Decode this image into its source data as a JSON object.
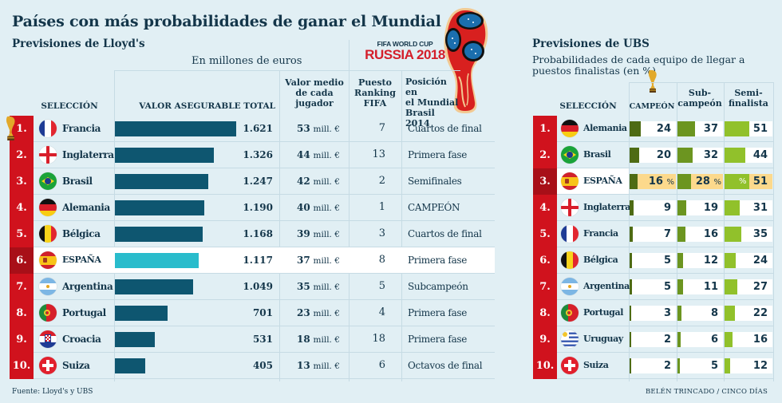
{
  "title": "Países con más probabilidades de ganar el Mundial",
  "lloyds": {
    "subtitle": "Previsiones de Lloyd's",
    "unit_note": "En millones de euros",
    "headers": {
      "seleccion": "SELECCIÓN",
      "valor_total": "VALOR ASEGURABLE TOTAL",
      "valor_medio": [
        "Valor medio",
        "de cada",
        "jugador"
      ],
      "ranking": [
        "Puesto",
        "Ranking",
        "FIFA"
      ],
      "posicion": [
        "Posición en",
        "el Mundial",
        "Brasil 2014"
      ]
    },
    "mill_suffix": "mill. €",
    "rows": [
      {
        "rank": "1.",
        "country": "Francia",
        "flag": "france",
        "value": "1.621",
        "value_num": 1621,
        "avg": "53",
        "fifa": "7",
        "pos2014": "Cuartos de final",
        "highlight": false
      },
      {
        "rank": "2.",
        "country": "Inglaterra",
        "flag": "england",
        "value": "1.326",
        "value_num": 1326,
        "avg": "44",
        "fifa": "13",
        "pos2014": "Primera fase",
        "highlight": false
      },
      {
        "rank": "3.",
        "country": "Brasil",
        "flag": "brazil",
        "value": "1.247",
        "value_num": 1247,
        "avg": "42",
        "fifa": "2",
        "pos2014": "Semifinales",
        "highlight": false
      },
      {
        "rank": "4.",
        "country": "Alemania",
        "flag": "germany",
        "value": "1.190",
        "value_num": 1190,
        "avg": "40",
        "fifa": "1",
        "pos2014": "CAMPEÓN",
        "highlight": false
      },
      {
        "rank": "5.",
        "country": "Bélgica",
        "flag": "belgium",
        "value": "1.168",
        "value_num": 1168,
        "avg": "39",
        "fifa": "3",
        "pos2014": "Cuartos de final",
        "highlight": false
      },
      {
        "rank": "6.",
        "country": "ESPAÑA",
        "flag": "spain",
        "value": "1.117",
        "value_num": 1117,
        "avg": "37",
        "fifa": "8",
        "pos2014": "Primera fase",
        "highlight": true
      },
      {
        "rank": "7.",
        "country": "Argentina",
        "flag": "argentina",
        "value": "1.049",
        "value_num": 1049,
        "avg": "35",
        "fifa": "5",
        "pos2014": "Subcampeón",
        "highlight": false
      },
      {
        "rank": "8.",
        "country": "Portugal",
        "flag": "portugal",
        "value": "701",
        "value_num": 701,
        "avg": "23",
        "fifa": "4",
        "pos2014": "Primera fase",
        "highlight": false
      },
      {
        "rank": "9.",
        "country": "Croacia",
        "flag": "croatia",
        "value": "531",
        "value_num": 531,
        "avg": "18",
        "fifa": "18",
        "pos2014": "Primera fase",
        "highlight": false
      },
      {
        "rank": "10.",
        "country": "Suiza",
        "flag": "switzerland",
        "value": "405",
        "value_num": 405,
        "avg": "13",
        "fifa": "6",
        "pos2014": "Octavos de final",
        "highlight": false
      }
    ]
  },
  "logo": {
    "small": "FIFA WORLD CUP",
    "big": "RUSSIA 2018"
  },
  "ubs": {
    "subtitle": "Previsiones de UBS",
    "description": "Probabilidades de cada equipo de llegar a puestos finalistas (en %)",
    "headers": {
      "seleccion": "SELECCIÓN",
      "campeon": "CAMPEÓN",
      "subcampeon": [
        "Sub-",
        "campeón"
      ],
      "semifinalista": [
        "Semi-",
        "finalista"
      ]
    },
    "pct_symbol": "%",
    "rows": [
      {
        "rank": "1.",
        "country": "Alemania",
        "flag": "germany",
        "champ": 24,
        "runner": 37,
        "semi": 51,
        "highlight": false
      },
      {
        "rank": "2.",
        "country": "Brasil",
        "flag": "brazil",
        "champ": 20,
        "runner": 32,
        "semi": 44,
        "highlight": false
      },
      {
        "rank": "3.",
        "country": "ESPAÑA",
        "flag": "spain",
        "champ": 16,
        "runner": 28,
        "semi": 51,
        "highlight": true
      },
      {
        "rank": "4.",
        "country": "Inglaterra",
        "flag": "england",
        "champ": 9,
        "runner": 19,
        "semi": 31,
        "highlight": false
      },
      {
        "rank": "5.",
        "country": "Francia",
        "flag": "france",
        "champ": 7,
        "runner": 16,
        "semi": 35,
        "highlight": false
      },
      {
        "rank": "6.",
        "country": "Bélgica",
        "flag": "belgium",
        "champ": 5,
        "runner": 12,
        "semi": 24,
        "highlight": false
      },
      {
        "rank": "7.",
        "country": "Argentina",
        "flag": "argentina",
        "champ": 5,
        "runner": 11,
        "semi": 27,
        "highlight": false
      },
      {
        "rank": "8.",
        "country": "Portugal",
        "flag": "portugal",
        "champ": 3,
        "runner": 8,
        "semi": 22,
        "highlight": false
      },
      {
        "rank": "9.",
        "country": "Uruguay",
        "flag": "uruguay",
        "champ": 2,
        "runner": 6,
        "semi": 16,
        "highlight": false
      },
      {
        "rank": "10.",
        "country": "Suiza",
        "flag": "switzerland",
        "champ": 2,
        "runner": 5,
        "semi": 12,
        "highlight": false
      }
    ]
  },
  "footer": {
    "source": "Fuente: Lloyd's y UBS",
    "credit": "BELÉN TRINCADO / CINCO DÍAS"
  },
  "colors": {
    "background": "#e1eff4",
    "text": "#14364a",
    "rank_red": "#d0121d",
    "rank_red_dark": "#a80f18",
    "bar_lloyds": "#0e5670",
    "bar_spain": "#29bccc",
    "bar_champ": "#4e6b14",
    "bar_runner": "#6c9520",
    "bar_semi": "#91c12b",
    "spain_highlight": "#fcd98c",
    "logo_red": "#d41f2b"
  },
  "chart_data": [
    {
      "type": "bar",
      "title": "Previsiones de Lloyd's — Valor asegurable total",
      "subtitle": "En millones de euros",
      "orientation": "horizontal",
      "categories": [
        "Francia",
        "Inglaterra",
        "Brasil",
        "Alemania",
        "Bélgica",
        "ESPAÑA",
        "Argentina",
        "Portugal",
        "Croacia",
        "Suiza"
      ],
      "values": [
        1621,
        1326,
        1247,
        1190,
        1168,
        1117,
        1049,
        701,
        531,
        405
      ],
      "xlabel": "VALOR ASEGURABLE TOTAL",
      "ylabel": "SELECCIÓN",
      "xlim": [
        0,
        1621
      ],
      "grid": false
    },
    {
      "type": "bar",
      "title": "Previsiones de UBS — Probabilidades de cada equipo de llegar a puestos finalistas (en %)",
      "orientation": "horizontal",
      "categories": [
        "Alemania",
        "Brasil",
        "ESPAÑA",
        "Inglaterra",
        "Francia",
        "Bélgica",
        "Argentina",
        "Portugal",
        "Uruguay",
        "Suiza"
      ],
      "series": [
        {
          "name": "CAMPEÓN",
          "values": [
            24,
            20,
            16,
            9,
            7,
            5,
            5,
            3,
            2,
            2
          ]
        },
        {
          "name": "Subcampeón",
          "values": [
            37,
            32,
            28,
            19,
            16,
            12,
            11,
            8,
            6,
            5
          ]
        },
        {
          "name": "Semifinalista",
          "values": [
            51,
            44,
            51,
            31,
            35,
            24,
            27,
            22,
            16,
            12
          ]
        }
      ],
      "ylabel": "SELECCIÓN",
      "xlim": [
        0,
        100
      ],
      "grid": false
    }
  ]
}
